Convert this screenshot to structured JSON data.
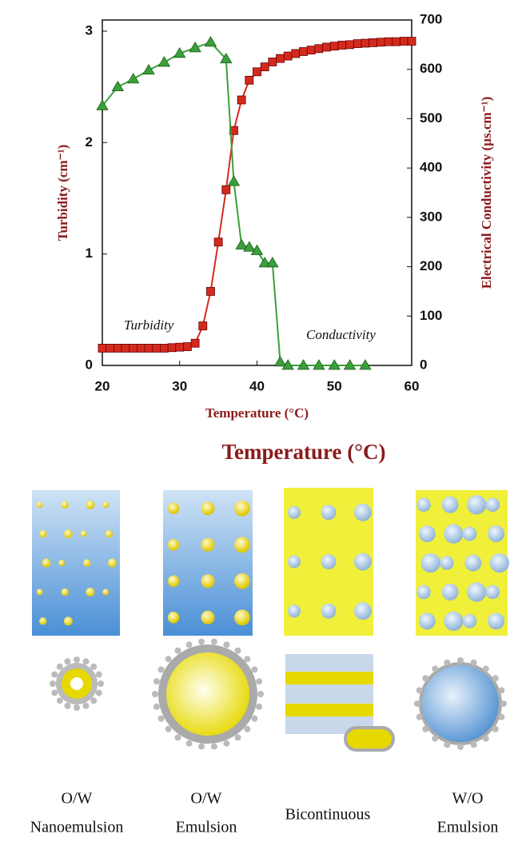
{
  "chart_data": {
    "type": "line",
    "x_label": "Temperature (°C)",
    "y_label": "Turbidity (cm⁻¹)",
    "y2_label": "Electrical Conductivity  (µs.cm⁻¹)",
    "annotations": [
      "Turbidity",
      "Conductivity"
    ],
    "xlim": [
      20,
      60
    ],
    "xticks": [
      20,
      30,
      40,
      50,
      60
    ],
    "ylim": [
      0,
      3.1
    ],
    "yticks": [
      0,
      1,
      2,
      3
    ],
    "y2lim": [
      0,
      700
    ],
    "y2ticks": [
      0,
      100,
      200,
      300,
      400,
      500,
      600,
      700
    ],
    "series": [
      {
        "color": "#d42a1e",
        "marker": "square",
        "axis": "y2",
        "x": [
          20,
          21,
          22,
          23,
          24,
          25,
          26,
          27,
          28,
          29,
          30,
          31,
          32,
          33,
          34,
          35,
          36,
          37,
          38,
          39,
          40,
          41,
          42,
          43,
          44,
          45,
          46,
          47,
          48,
          49,
          50,
          51,
          52,
          53,
          54,
          55,
          56,
          57,
          58,
          59,
          60
        ],
        "values": [
          35,
          35,
          35,
          35,
          35,
          35,
          35,
          35,
          35,
          36,
          37,
          38,
          45,
          80,
          150,
          250,
          356,
          476,
          538,
          578,
          595,
          605,
          615,
          622,
          627,
          632,
          636,
          639,
          642,
          645,
          647,
          649,
          650,
          652,
          653,
          654,
          655,
          656,
          656,
          657,
          657
        ]
      },
      {
        "color": "#3aa03a",
        "marker": "triangle",
        "axis": "y",
        "x": [
          20,
          22,
          24,
          26,
          28,
          30,
          32,
          34,
          36,
          37,
          38,
          39,
          40,
          41,
          42,
          43,
          44,
          46,
          48,
          50,
          52,
          54
        ],
        "values": [
          2.33,
          2.5,
          2.57,
          2.65,
          2.72,
          2.8,
          2.85,
          2.9,
          2.75,
          1.65,
          1.08,
          1.06,
          1.03,
          0.92,
          0.92,
          0.03,
          0,
          0,
          0,
          0,
          0,
          0
        ]
      }
    ]
  },
  "diagram": {
    "title": "Temperature (°C)",
    "labels": [
      [
        "O/W",
        "Nanoemulsion"
      ],
      [
        "O/W",
        "Emulsion"
      ],
      [
        "Bicontinuous"
      ],
      [
        "W/O",
        "Emulsion"
      ]
    ]
  }
}
